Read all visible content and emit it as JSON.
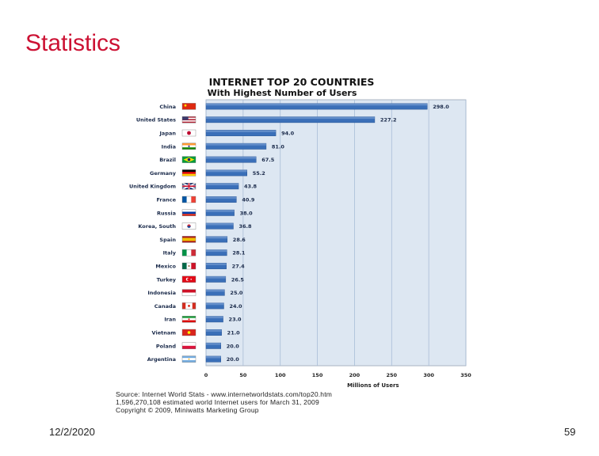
{
  "slide": {
    "title": "Statistics",
    "date": "12/2/2020",
    "page_number": "59"
  },
  "chart_data": {
    "type": "bar",
    "orientation": "horizontal",
    "title": "INTERNET TOP 20 COUNTRIES",
    "subtitle": "With Highest Number of Users",
    "xlabel": "Millions of Users",
    "ylabel": "",
    "xlim": [
      0,
      350
    ],
    "x_ticks": [
      0,
      50,
      100,
      150,
      200,
      250,
      300,
      350
    ],
    "grid": true,
    "legend": "none",
    "bar_color": "#3a6fb8",
    "plot_background": "#dde7f2",
    "categories": [
      "China",
      "United States",
      "Japan",
      "India",
      "Brazil",
      "Germany",
      "United Kingdom",
      "France",
      "Russia",
      "Korea, South",
      "Spain",
      "Italy",
      "Mexico",
      "Turkey",
      "Indonesia",
      "Canada",
      "Iran",
      "Vietnam",
      "Poland",
      "Argentina"
    ],
    "values": [
      298.0,
      227.2,
      94.0,
      81.0,
      67.5,
      55.2,
      43.8,
      40.9,
      38.0,
      36.8,
      28.6,
      28.1,
      27.4,
      26.5,
      25.0,
      24.0,
      23.0,
      21.0,
      20.0,
      20.0
    ],
    "value_labels": [
      "298.0",
      "227.2",
      "94.0",
      "81.0",
      "67.5",
      "55.2",
      "43.8",
      "40.9",
      "38.0",
      "36.8",
      "28.6",
      "28.1",
      "27.4",
      "26.5",
      "25.0",
      "24.0",
      "23.0",
      "21.0",
      "20.0",
      "20.0"
    ],
    "flags": [
      "flag-china-icon",
      "flag-united-states-icon",
      "flag-japan-icon",
      "flag-india-icon",
      "flag-brazil-icon",
      "flag-germany-icon",
      "flag-united-kingdom-icon",
      "flag-france-icon",
      "flag-russia-icon",
      "flag-korea-south-icon",
      "flag-spain-icon",
      "flag-italy-icon",
      "flag-mexico-icon",
      "flag-turkey-icon",
      "flag-indonesia-icon",
      "flag-canada-icon",
      "flag-iran-icon",
      "flag-vietnam-icon",
      "flag-poland-icon",
      "flag-argentina-icon"
    ]
  },
  "source_lines": [
    "Source: Internet World Stats - www.internetworldstats.com/top20.htm",
    "1,596,270,108 estimated world Internet users for March 31, 2009",
    "Copyright © 2009, Miniwatts Marketing Group"
  ]
}
